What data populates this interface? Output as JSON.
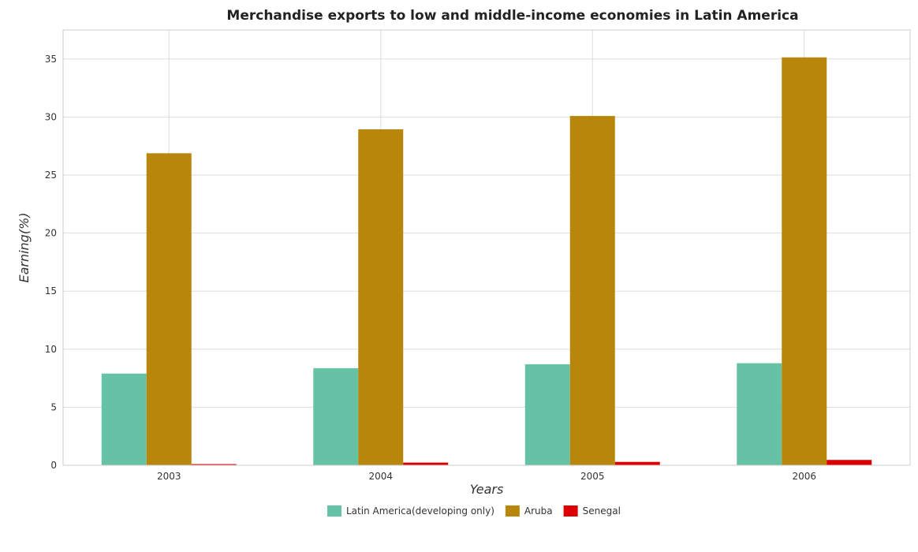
{
  "chart_data": {
    "type": "bar",
    "title": "Merchandise exports to low and middle-income economies in Latin America",
    "xlabel": "Years",
    "ylabel": "Earning(%)",
    "categories": [
      "2003",
      "2004",
      "2005",
      "2006"
    ],
    "series": [
      {
        "name": "Latin America(developing only)",
        "color": "#66c2a5",
        "values": [
          7.9,
          8.36,
          8.7,
          8.79
        ]
      },
      {
        "name": "Aruba",
        "color": "#b8860b",
        "values": [
          26.88,
          28.94,
          30.09,
          35.14
        ]
      },
      {
        "name": "Senegal",
        "color": "#dd0000",
        "values": [
          0.1,
          0.23,
          0.29,
          0.46
        ]
      }
    ],
    "ylim": [
      0,
      37.5
    ],
    "yticks": [
      0,
      5,
      10,
      15,
      20,
      25,
      30,
      35
    ],
    "grid": true,
    "legend_position": "bottom-center"
  }
}
